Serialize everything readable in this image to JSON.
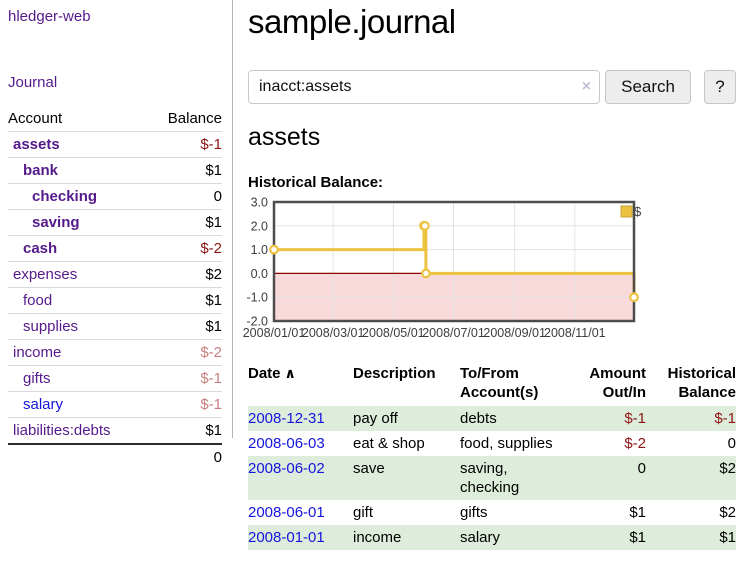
{
  "sidebar": {
    "app_title": "hledger-web",
    "nav": {
      "journal": "Journal"
    },
    "table": {
      "headers": {
        "account": "Account",
        "balance": "Balance"
      },
      "accounts": [
        {
          "name": "assets",
          "balance": "$-1"
        },
        {
          "name": "bank",
          "balance": "$1"
        },
        {
          "name": "checking",
          "balance": "0"
        },
        {
          "name": "saving",
          "balance": "$1"
        },
        {
          "name": "cash",
          "balance": "$-2"
        },
        {
          "name": "expenses",
          "balance": "$2"
        },
        {
          "name": "food",
          "balance": "$1"
        },
        {
          "name": "supplies",
          "balance": "$1"
        },
        {
          "name": "income",
          "balance": "$-2"
        },
        {
          "name": "gifts",
          "balance": "$-1"
        },
        {
          "name": "salary",
          "balance": "$-1"
        },
        {
          "name": "liabilities:debts",
          "balance": "$1"
        }
      ],
      "total": "0"
    }
  },
  "main": {
    "title": "sample.journal",
    "search": {
      "value": "inacct:assets",
      "clear_icon": "×",
      "button": "Search",
      "help_button": "?"
    },
    "account_heading": "assets",
    "chart_label": "Historical Balance:",
    "register": {
      "headers": {
        "date": "Date",
        "sort_icon": "∧",
        "description": "Description",
        "tofrom": "To/From Account(s)",
        "amount": "Amount Out/In",
        "balance": "Historical Balance"
      },
      "rows": [
        {
          "date": "2008-12-31",
          "description": "pay off",
          "accounts": "debts",
          "amount": "$-1",
          "balance": "$-1"
        },
        {
          "date": "2008-06-03",
          "description": "eat & shop",
          "accounts": "food, supplies",
          "amount": "$-2",
          "balance": "0"
        },
        {
          "date": "2008-06-02",
          "description": "save",
          "accounts": "saving, checking",
          "amount": "0",
          "balance": "$2"
        },
        {
          "date": "2008-06-01",
          "description": "gift",
          "accounts": "gifts",
          "amount": "$1",
          "balance": "$2"
        },
        {
          "date": "2008-01-01",
          "description": "income",
          "accounts": "salary",
          "amount": "$1",
          "balance": "$1"
        }
      ]
    }
  },
  "chart_data": {
    "type": "line",
    "title": "Historical Balance:",
    "step": true,
    "series": [
      {
        "name": "$",
        "color": "#edc240",
        "points": [
          {
            "date": "2008-01-01",
            "value": 1
          },
          {
            "date": "2008-06-01",
            "value": 2
          },
          {
            "date": "2008-06-02",
            "value": 2
          },
          {
            "date": "2008-06-03",
            "value": 0
          },
          {
            "date": "2008-12-31",
            "value": -1
          }
        ]
      }
    ],
    "x_range": [
      "2008-01-01",
      "2008-12-31"
    ],
    "ylim": [
      -2,
      3
    ],
    "ytick_labels": [
      "3.0",
      "2.0",
      "1.0",
      "0.0",
      "-1.0",
      "-2.0"
    ],
    "xtick_labels": [
      "2008/01/01",
      "2008/03/01",
      "2008/05/01",
      "2008/07/01",
      "2008/09/01",
      "2008/11/01"
    ],
    "grid": true,
    "legend_position": "top-right",
    "negative_region_color": "#f9dada",
    "zero_line_color": "#8b0000",
    "border_color": "#4d4d4d",
    "gridline_color": "#e2e2e2"
  },
  "colors": {
    "link_purple": "#551a8b",
    "link_blue": "#1515dd",
    "negative_strong": "#8f1414",
    "negative_faded": "#c97f7f",
    "row_stripe_green": "#deeddb",
    "series_yellow": "#edc240",
    "sidebar_divider": "#b5b5b5"
  }
}
